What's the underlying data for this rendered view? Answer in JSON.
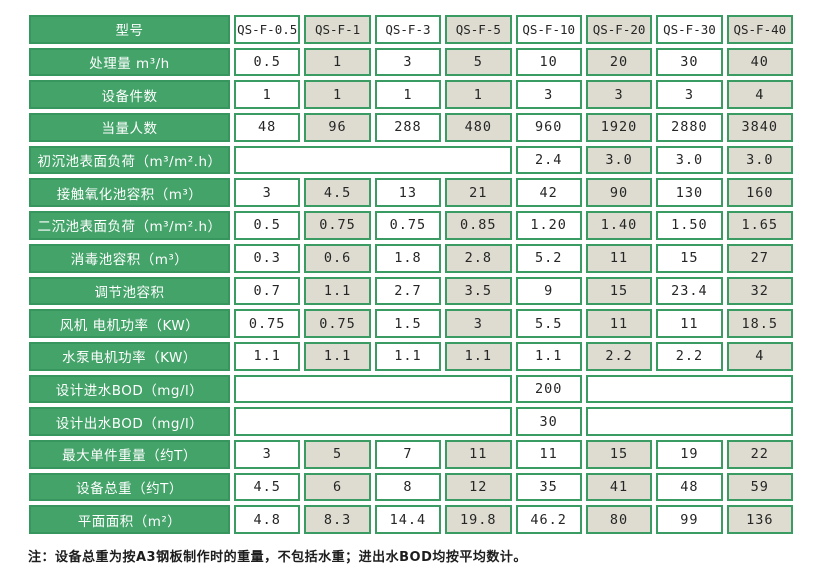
{
  "colors": {
    "label_green": "#43A369",
    "border_green": "#3A9C62",
    "alt_column_beige": "#DEDCD0",
    "cell_white": "#FFFFFF",
    "data_text": "#262626",
    "label_text": "#FFFFFF"
  },
  "table": {
    "header": {
      "label": "型号",
      "models": [
        "QS-F-0.5",
        "QS-F-1",
        "QS-F-3",
        "QS-F-5",
        "QS-F-10",
        "QS-F-20",
        "QS-F-30",
        "QS-F-40"
      ]
    },
    "rows": [
      {
        "label": "处理量 m³/h",
        "cells": [
          "0.5",
          "1",
          "3",
          "5",
          "10",
          "20",
          "30",
          "40"
        ]
      },
      {
        "label": "设备件数",
        "cells": [
          "1",
          "1",
          "1",
          "1",
          "3",
          "3",
          "3",
          "4"
        ]
      },
      {
        "label": "当量人数",
        "cells": [
          "48",
          "96",
          "288",
          "480",
          "960",
          "1920",
          "2880",
          "3840"
        ]
      },
      {
        "label": "初沉池表面负荷（m³/m².h）",
        "cells": [
          "",
          "2.4",
          "3.0",
          "3.0",
          "3.0"
        ],
        "spans": [
          4,
          1,
          1,
          1,
          1
        ]
      },
      {
        "label": "接触氧化池容积（m³）",
        "cells": [
          "3",
          "4.5",
          "13",
          "21",
          "42",
          "90",
          "130",
          "160"
        ]
      },
      {
        "label": "二沉池表面负荷（m³/m².h）",
        "cells": [
          "0.5",
          "0.75",
          "0.75",
          "0.85",
          "1.20",
          "1.40",
          "1.50",
          "1.65"
        ]
      },
      {
        "label": "消毒池容积（m³）",
        "cells": [
          "0.3",
          "0.6",
          "1.8",
          "2.8",
          "5.2",
          "11",
          "15",
          "27"
        ]
      },
      {
        "label": "调节池容积",
        "cells": [
          "0.7",
          "1.1",
          "2.7",
          "3.5",
          "9",
          "15",
          "23.4",
          "32"
        ]
      },
      {
        "label": "风机 电机功率（KW）",
        "cells": [
          "0.75",
          "0.75",
          "1.5",
          "3",
          "5.5",
          "11",
          "11",
          "18.5"
        ]
      },
      {
        "label": "水泵电机功率（KW）",
        "cells": [
          "1.1",
          "1.1",
          "1.1",
          "1.1",
          "1.1",
          "2.2",
          "2.2",
          "4"
        ]
      },
      {
        "label": "设计进水BOD（mg/l）",
        "cells": [
          "",
          "200",
          ""
        ],
        "spans": [
          4,
          1,
          3
        ]
      },
      {
        "label": "设计出水BOD（mg/l）",
        "cells": [
          "",
          "30",
          ""
        ],
        "spans": [
          4,
          1,
          3
        ]
      },
      {
        "label": "最大单件重量（约T）",
        "cells": [
          "3",
          "5",
          "7",
          "11",
          "11",
          "15",
          "19",
          "22"
        ]
      },
      {
        "label": "设备总重（约T）",
        "cells": [
          "4.5",
          "6",
          "8",
          "12",
          "35",
          "41",
          "48",
          "59"
        ]
      },
      {
        "label": "平面面积（m²）",
        "cells": [
          "4.8",
          "8.3",
          "14.4",
          "19.8",
          "46.2",
          "80",
          "99",
          "136"
        ]
      }
    ]
  },
  "footer": {
    "note": "注：设备总重为按A3钢板制作时的重量，不包括水重；进出水BOD均按平均数计。"
  }
}
